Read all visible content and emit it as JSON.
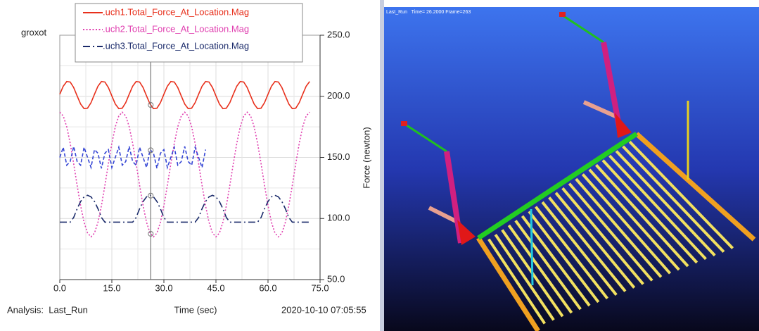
{
  "chart_data": {
    "type": "line",
    "title": "groxot",
    "x_label": "Time (sec)",
    "y_label": "Force (newton)",
    "x": [
      0,
      1,
      2,
      3,
      4,
      5,
      6,
      7,
      8,
      9,
      10,
      11,
      12,
      13,
      14,
      15,
      16,
      17,
      18,
      19,
      20,
      21,
      22,
      23,
      24,
      25,
      26,
      27,
      28,
      29,
      30,
      31,
      32,
      33,
      34,
      35,
      36,
      37,
      38,
      39,
      40,
      41,
      42,
      43,
      44,
      45,
      46,
      47,
      48,
      49,
      50,
      51,
      52,
      53,
      54,
      55,
      56,
      57,
      58,
      59,
      60,
      61,
      62,
      63,
      64,
      65,
      66,
      67,
      68,
      69,
      70,
      71,
      72
    ],
    "series": [
      {
        "name": ".uch1.Total_Force_At_Location.Mag",
        "color": "#e8301c",
        "style": "solid",
        "values": [
          201.7,
          208.3,
          212.1,
          211.7,
          207.2,
          200.3,
          193.7,
          189.9,
          190.3,
          194.8,
          201.7,
          208.3,
          212.1,
          211.7,
          207.2,
          200.3,
          193.7,
          189.9,
          190.3,
          194.8,
          201.7,
          208.3,
          212.1,
          211.7,
          207.2,
          200.3,
          193.7,
          189.9,
          190.3,
          194.8,
          201.7,
          208.3,
          212.1,
          211.7,
          207.2,
          200.3,
          193.7,
          189.9,
          190.3,
          194.8,
          201.7,
          208.3,
          212.1,
          211.7,
          207.2,
          200.3,
          193.7,
          189.9,
          190.3,
          194.8,
          201.7,
          208.3,
          212.1,
          211.7,
          207.2,
          200.3,
          193.7,
          189.9,
          190.3,
          194.8,
          201.7,
          208.3,
          212.1,
          211.7,
          207.2,
          200.3,
          193.7,
          189.9,
          190.3,
          194.8,
          201.7,
          208.3,
          212.1
        ]
      },
      {
        "name": ".uch2.Total_Force_At_Location.Mag",
        "color": "#e040b0",
        "style": "dotted",
        "values": [
          187,
          183.9,
          175.1,
          161.5,
          144.9,
          127.1,
          110.5,
          96.9,
          88.1,
          85,
          88.1,
          96.9,
          110.5,
          127.1,
          144.9,
          161.5,
          175.1,
          183.9,
          187,
          183.9,
          175.1,
          161.5,
          144.9,
          127.1,
          110.5,
          96.9,
          88.1,
          85,
          88.1,
          96.9,
          110.5,
          127.1,
          144.9,
          161.5,
          175.1,
          183.9,
          187,
          183.9,
          175.1,
          161.5,
          144.9,
          127.1,
          110.5,
          96.9,
          88.1,
          85,
          88.1,
          96.9,
          110.5,
          127.1,
          144.9,
          161.5,
          175.1,
          183.9,
          187,
          183.9,
          175.1,
          161.5,
          144.9,
          127.1,
          110.5,
          96.9,
          88.1,
          85,
          88.1,
          96.9,
          110.5,
          127.1,
          144.9,
          161.5,
          175.1,
          183.9,
          187
        ]
      },
      {
        "name": ".uch3.Total_Force_At_Location.Mag",
        "color": "#1a2a6a",
        "style": "dashdot",
        "values": [
          97,
          97,
          97,
          97,
          100.8,
          108,
          113.9,
          117.7,
          119,
          117.7,
          113.9,
          108,
          100.8,
          97,
          97,
          97,
          97,
          97,
          97,
          97,
          97,
          97,
          100.8,
          108,
          113.9,
          117.7,
          119,
          117.7,
          113.9,
          108,
          100.8,
          97,
          97,
          97,
          97,
          97,
          97,
          97,
          97,
          97,
          100.8,
          108,
          113.9,
          117.7,
          119,
          117.7,
          113.9,
          108,
          100.8,
          97,
          97,
          97,
          97,
          97,
          97,
          97,
          97,
          97,
          100.8,
          108,
          113.9,
          117.7,
          119,
          117.7,
          113.9,
          108,
          100.8,
          97,
          97,
          97,
          97,
          97,
          97
        ]
      },
      {
        "color": "#3344d4",
        "style": "dashed",
        "values": [
          150,
          158.3,
          143.6,
          146.6,
          159,
          146.6,
          143.6,
          158.3,
          150,
          141.7,
          156.4,
          153.4,
          141,
          153.4,
          156.4,
          141.7,
          150,
          158.3,
          143.6,
          146.6,
          159,
          146.6,
          143.6,
          158.3,
          150,
          141.7,
          156.4,
          153.4,
          141,
          153.4,
          156.4,
          141.7,
          150,
          158.3,
          143.6,
          146.6,
          159,
          146.6,
          143.6,
          158.3,
          150,
          141.7,
          156.4,
          null,
          null,
          null,
          null,
          null,
          null,
          null,
          null,
          null,
          null,
          null,
          null,
          null,
          null,
          null,
          null,
          null,
          null,
          null,
          null,
          null,
          null,
          null,
          null,
          null,
          null,
          null,
          null,
          null,
          null
        ]
      }
    ],
    "xlim": [
      0,
      75
    ],
    "xticks": [
      {
        "value": 0,
        "label": "0.0"
      },
      {
        "value": 15,
        "label": "15.0"
      },
      {
        "value": 30,
        "label": "30.0"
      },
      {
        "value": 45,
        "label": "45.0"
      },
      {
        "value": 60,
        "label": "60.0"
      },
      {
        "value": 75,
        "label": "75.0"
      }
    ],
    "ylim": [
      50,
      250
    ],
    "yticks": [
      {
        "value": 50,
        "label": "50.0"
      },
      {
        "value": 100,
        "label": "100.0"
      },
      {
        "value": 150,
        "label": "150.0"
      },
      {
        "value": 200,
        "label": "200.0"
      },
      {
        "value": 250,
        "label": "250.0"
      }
    ],
    "y_axis_side": "right",
    "grid": true,
    "cursor_x": 26.2
  },
  "status_bar": {
    "analysis": "Analysis:  Last_Run",
    "timestamp": "2020-10-10 07:05:55"
  },
  "viewport": {
    "caption": "Last_Run   Time= 26.2000 Frame=263"
  }
}
